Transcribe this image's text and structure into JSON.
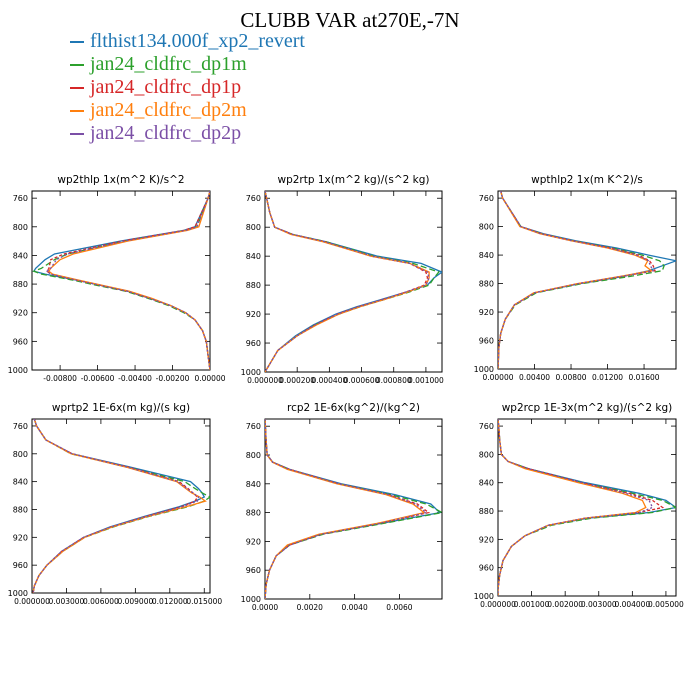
{
  "figure": {
    "title": "CLUBB VAR at270E,-7N"
  },
  "colors": {
    "series": [
      "#1f77b4",
      "#2ca02c",
      "#d62728",
      "#ff7f0e",
      "#7b4fa6"
    ]
  },
  "legend": [
    {
      "name": "flthist134.000f_xp2_revert",
      "color": "#1f77b4"
    },
    {
      "name": "jan24_cldfrc_dp1m",
      "color": "#2ca02c"
    },
    {
      "name": "jan24_cldfrc_dp1p",
      "color": "#d62728"
    },
    {
      "name": "jan24_cldfrc_dp2m",
      "color": "#ff7f0e"
    },
    {
      "name": "jan24_cldfrc_dp2p",
      "color": "#7b4fa6"
    }
  ],
  "chart_data": [
    {
      "type": "line",
      "title": "wp2thlp   1x(m^2 K)/s^2",
      "xlim": [
        -0.0095,
        0.0
      ],
      "ylim": [
        1000,
        750
      ],
      "xticks": [
        -0.008,
        -0.006,
        -0.004,
        -0.002,
        0.0
      ],
      "xtick_labels": [
        "-0.00800",
        "-0.00600",
        "-0.00400",
        "-0.00200",
        "0.00000"
      ],
      "yticks": [
        760,
        800,
        840,
        880,
        920,
        960,
        1000
      ],
      "y": [
        750,
        760,
        800,
        805,
        820,
        838,
        846,
        858,
        862,
        866,
        874,
        882,
        890,
        900,
        910,
        920,
        930,
        945,
        960,
        980,
        1000
      ],
      "series": [
        {
          "name": "flthist134.000f_xp2_revert",
          "x": [
            0,
            -0.0001,
            -0.0008,
            -0.0014,
            -0.0048,
            -0.0083,
            -0.0088,
            -0.0093,
            -0.0094,
            -0.0088,
            -0.0072,
            -0.0058,
            -0.0044,
            -0.0032,
            -0.0021,
            -0.0013,
            -0.0008,
            -0.0004,
            -0.0002,
            -0.0001,
            0
          ]
        },
        {
          "name": "jan24_cldfrc_dp1m",
          "x": [
            0,
            -0.0001,
            -0.0007,
            -0.0013,
            -0.0046,
            -0.0076,
            -0.0083,
            -0.009,
            -0.0094,
            -0.009,
            -0.0074,
            -0.006,
            -0.0045,
            -0.0033,
            -0.0022,
            -0.0014,
            -0.0008,
            -0.0004,
            -0.0002,
            -0.0001,
            0
          ]
        },
        {
          "name": "jan24_cldfrc_dp1p",
          "x": [
            0,
            -0.0001,
            -0.0008,
            -0.0014,
            -0.0047,
            -0.0078,
            -0.0085,
            -0.0086,
            -0.0087,
            -0.0085,
            -0.0072,
            -0.0058,
            -0.0044,
            -0.0032,
            -0.0021,
            -0.0013,
            -0.0008,
            -0.0004,
            -0.0002,
            -0.0001,
            0
          ]
        },
        {
          "name": "jan24_cldfrc_dp2m",
          "x": [
            0,
            -0.0001,
            -0.0006,
            -0.0012,
            -0.0044,
            -0.0073,
            -0.008,
            -0.0085,
            -0.0086,
            -0.0084,
            -0.0071,
            -0.0057,
            -0.0043,
            -0.0031,
            -0.0021,
            -0.0013,
            -0.0008,
            -0.0004,
            -0.0002,
            -0.0001,
            0
          ]
        },
        {
          "name": "jan24_cldfrc_dp2p",
          "x": [
            0,
            -0.0001,
            -0.0007,
            -0.0013,
            -0.0046,
            -0.0076,
            -0.0082,
            -0.0085,
            -0.0087,
            -0.0085,
            -0.0072,
            -0.0058,
            -0.0044,
            -0.0032,
            -0.0021,
            -0.0013,
            -0.0008,
            -0.0004,
            -0.0002,
            -0.0001,
            0
          ]
        }
      ]
    },
    {
      "type": "line",
      "title": "wp2rtp   1x(m^2 kg)/(s^2 kg)",
      "xlim": [
        0.0,
        0.0011
      ],
      "ylim": [
        1000,
        750
      ],
      "xticks": [
        0.0,
        0.0002,
        0.0004,
        0.0006,
        0.0008,
        0.001
      ],
      "xtick_labels": [
        "0.000000",
        "0.000200",
        "0.000400",
        "0.000600",
        "0.000800",
        "0.001000"
      ],
      "yticks": [
        760,
        800,
        840,
        880,
        920,
        960,
        1000
      ],
      "y": [
        750,
        760,
        780,
        800,
        810,
        820,
        840,
        850,
        862,
        870,
        880,
        890,
        900,
        910,
        920,
        935,
        950,
        970,
        1000
      ],
      "series": [
        {
          "name": "flthist134.000f_xp2_revert",
          "x": [
            0,
            1e-05,
            3e-05,
            6e-05,
            0.00017,
            0.00038,
            0.0007,
            0.00097,
            0.0011,
            0.00105,
            0.00101,
            0.00087,
            0.00072,
            0.00057,
            0.00044,
            0.0003,
            0.00019,
            8e-05,
            0
          ]
        },
        {
          "name": "jan24_cldfrc_dp1m",
          "x": [
            0,
            1e-05,
            3e-05,
            6e-05,
            0.00017,
            0.00038,
            0.00068,
            0.00092,
            0.00108,
            0.00105,
            0.00102,
            0.00089,
            0.00074,
            0.00059,
            0.00046,
            0.00031,
            0.0002,
            8e-05,
            0
          ]
        },
        {
          "name": "jan24_cldfrc_dp1p",
          "x": [
            0,
            1e-05,
            3e-05,
            6e-05,
            0.00017,
            0.00037,
            0.00066,
            0.0009,
            0.001,
            0.00101,
            0.00099,
            0.00087,
            0.00073,
            0.00058,
            0.00045,
            0.00031,
            0.0002,
            8e-05,
            0
          ]
        },
        {
          "name": "jan24_cldfrc_dp2m",
          "x": [
            0,
            1e-05,
            3e-05,
            6e-05,
            0.00016,
            0.00036,
            0.00066,
            0.0009,
            0.00102,
            0.00102,
            0.001,
            0.00088,
            0.00074,
            0.00059,
            0.00046,
            0.00032,
            0.0002,
            8e-05,
            0
          ]
        },
        {
          "name": "jan24_cldfrc_dp2p",
          "x": [
            0,
            1e-05,
            3e-05,
            6e-05,
            0.00017,
            0.00037,
            0.00067,
            0.0009,
            0.00101,
            0.00102,
            0.001,
            0.00087,
            0.00073,
            0.00058,
            0.00045,
            0.00031,
            0.0002,
            8e-05,
            0
          ]
        }
      ]
    },
    {
      "type": "line",
      "title": "wpthlp2   1x(m K^2)/s",
      "xlim": [
        0.0,
        0.0195
      ],
      "ylim": [
        1000,
        750
      ],
      "xticks": [
        0.0,
        0.004,
        0.008,
        0.012,
        0.016
      ],
      "xtick_labels": [
        "0.00000",
        "0.00400",
        "0.00800",
        "0.01200",
        "0.01600"
      ],
      "yticks": [
        760,
        800,
        840,
        880,
        920,
        960,
        1000
      ],
      "y": [
        750,
        760,
        800,
        810,
        820,
        830,
        840,
        848,
        855,
        862,
        870,
        880,
        893,
        910,
        930,
        950,
        970,
        1000
      ],
      "series": [
        {
          "name": "flthist134.000f_xp2_revert",
          "x": [
            0.0003,
            0.0005,
            0.0025,
            0.005,
            0.0085,
            0.013,
            0.0165,
            0.0195,
            0.018,
            0.0165,
            0.0138,
            0.009,
            0.004,
            0.0018,
            0.0008,
            0.0003,
            0.0001,
            0
          ]
        },
        {
          "name": "jan24_cldfrc_dp1m",
          "x": [
            0.0003,
            0.0005,
            0.0025,
            0.0048,
            0.0082,
            0.0125,
            0.0158,
            0.0177,
            0.0182,
            0.018,
            0.0145,
            0.0092,
            0.0042,
            0.0019,
            0.0008,
            0.0003,
            0.0001,
            0
          ]
        },
        {
          "name": "jan24_cldfrc_dp1p",
          "x": [
            0.0003,
            0.0005,
            0.0025,
            0.0048,
            0.0082,
            0.0124,
            0.0154,
            0.0166,
            0.017,
            0.0172,
            0.0136,
            0.0088,
            0.004,
            0.0018,
            0.0008,
            0.0003,
            0.0001,
            0
          ]
        },
        {
          "name": "jan24_cldfrc_dp2m",
          "x": [
            0.0003,
            0.0005,
            0.0024,
            0.0046,
            0.008,
            0.012,
            0.015,
            0.0164,
            0.0161,
            0.0168,
            0.0134,
            0.0087,
            0.0039,
            0.0018,
            0.0008,
            0.0003,
            0.0001,
            0
          ]
        },
        {
          "name": "jan24_cldfrc_dp2p",
          "x": [
            0.0003,
            0.0005,
            0.0025,
            0.0047,
            0.0081,
            0.0122,
            0.0152,
            0.0165,
            0.0167,
            0.017,
            0.0135,
            0.0088,
            0.004,
            0.0018,
            0.0008,
            0.0003,
            0.0001,
            0
          ]
        }
      ]
    },
    {
      "type": "line",
      "title": "wprtp2   1E-6x(m kg)/(s kg)",
      "xlim": [
        0.0,
        0.0155
      ],
      "ylim": [
        1000,
        750
      ],
      "xticks": [
        0.0,
        0.003,
        0.006,
        0.009,
        0.012,
        0.015
      ],
      "xtick_labels": [
        "0.000000",
        "0.003000",
        "0.006000",
        "0.009000",
        "0.012000",
        "0.015000"
      ],
      "yticks": [
        760,
        800,
        840,
        880,
        920,
        960,
        1000
      ],
      "y": [
        750,
        760,
        780,
        800,
        820,
        840,
        850,
        856,
        862,
        868,
        876,
        890,
        905,
        920,
        940,
        960,
        975,
        990,
        1000
      ],
      "series": [
        {
          "name": "flthist134.000f_xp2_revert",
          "x": [
            0.0002,
            0.0004,
            0.0012,
            0.0035,
            0.0088,
            0.0138,
            0.0145,
            0.0148,
            0.015,
            0.0142,
            0.0128,
            0.0098,
            0.0068,
            0.0045,
            0.0026,
            0.0013,
            0.0006,
            0.0002,
            0.0001
          ]
        },
        {
          "name": "jan24_cldfrc_dp1m",
          "x": [
            0.0002,
            0.0004,
            0.0012,
            0.0034,
            0.0085,
            0.0133,
            0.0142,
            0.0148,
            0.0155,
            0.015,
            0.0136,
            0.0102,
            0.0071,
            0.0046,
            0.0027,
            0.0013,
            0.0006,
            0.0002,
            0.0001
          ]
        },
        {
          "name": "jan24_cldfrc_dp1p",
          "x": [
            0.0002,
            0.0004,
            0.0012,
            0.0035,
            0.0086,
            0.0128,
            0.0136,
            0.014,
            0.0144,
            0.0142,
            0.013,
            0.0099,
            0.0069,
            0.0045,
            0.0026,
            0.0013,
            0.0006,
            0.0002,
            0.0001
          ]
        },
        {
          "name": "jan24_cldfrc_dp2m",
          "x": [
            0.0002,
            0.0004,
            0.0012,
            0.0034,
            0.0084,
            0.0126,
            0.0134,
            0.0139,
            0.0146,
            0.0151,
            0.0134,
            0.0101,
            0.007,
            0.0046,
            0.0027,
            0.0013,
            0.0006,
            0.0002,
            0.0001
          ]
        },
        {
          "name": "jan24_cldfrc_dp2p",
          "x": [
            0.0002,
            0.0004,
            0.0012,
            0.0035,
            0.0085,
            0.0127,
            0.0135,
            0.014,
            0.0145,
            0.0144,
            0.0131,
            0.01,
            0.0069,
            0.0045,
            0.0026,
            0.0013,
            0.0006,
            0.0002,
            0.0001
          ]
        }
      ]
    },
    {
      "type": "line",
      "title": "rcp2   1E-6x(kg^2)/(kg^2)",
      "xlim": [
        0.0,
        0.0079
      ],
      "ylim": [
        1000,
        750
      ],
      "xticks": [
        0.0,
        0.002,
        0.004,
        0.006
      ],
      "xtick_labels": [
        "0.0000",
        "0.0020",
        "0.0040",
        "0.0060"
      ],
      "yticks": [
        760,
        800,
        840,
        880,
        920,
        960,
        1000
      ],
      "y": [
        750,
        760,
        780,
        800,
        810,
        820,
        840,
        855,
        868,
        880,
        895,
        910,
        925,
        940,
        960,
        980,
        1000
      ],
      "series": [
        {
          "name": "flthist134.000f_xp2_revert",
          "x": [
            0,
            2e-05,
            5e-05,
            0.0001,
            0.00035,
            0.0011,
            0.0034,
            0.0058,
            0.0074,
            0.0078,
            0.0052,
            0.0025,
            0.0011,
            0.0005,
            0.0002,
            5e-05,
            0
          ]
        },
        {
          "name": "jan24_cldfrc_dp1m",
          "x": [
            0,
            2e-05,
            5e-05,
            0.0001,
            0.00035,
            0.0011,
            0.0033,
            0.0056,
            0.0072,
            0.0079,
            0.0053,
            0.0026,
            0.0011,
            0.0005,
            0.0002,
            5e-05,
            0
          ]
        },
        {
          "name": "jan24_cldfrc_dp1p",
          "x": [
            0,
            2e-05,
            5e-05,
            0.0001,
            0.00035,
            0.0011,
            0.0033,
            0.0055,
            0.0068,
            0.0073,
            0.0051,
            0.0025,
            0.0011,
            0.0005,
            0.0002,
            5e-05,
            0
          ]
        },
        {
          "name": "jan24_cldfrc_dp2m",
          "x": [
            0,
            2e-05,
            5e-05,
            0.0001,
            0.00033,
            0.001,
            0.0032,
            0.0054,
            0.0066,
            0.0071,
            0.005,
            0.0024,
            0.001,
            0.0005,
            0.0002,
            5e-05,
            0
          ]
        },
        {
          "name": "jan24_cldfrc_dp2p",
          "x": [
            0,
            2e-05,
            5e-05,
            0.0001,
            0.00034,
            0.0011,
            0.0033,
            0.0055,
            0.0067,
            0.0072,
            0.0051,
            0.0025,
            0.0011,
            0.0005,
            0.0002,
            5e-05,
            0
          ]
        }
      ]
    },
    {
      "type": "line",
      "title": "wp2rcp   1E-3x(m^2 kg)/(s^2 kg)",
      "xlim": [
        0.0,
        0.0053
      ],
      "ylim": [
        1000,
        750
      ],
      "xticks": [
        0.0,
        0.001,
        0.002,
        0.003,
        0.004,
        0.005
      ],
      "xtick_labels": [
        "0.000000",
        "0.001000",
        "0.002000",
        "0.003000",
        "0.004000",
        "0.005000"
      ],
      "yticks": [
        760,
        800,
        840,
        880,
        920,
        960,
        1000
      ],
      "y": [
        750,
        760,
        780,
        800,
        810,
        820,
        840,
        855,
        865,
        875,
        882,
        890,
        900,
        915,
        930,
        950,
        970,
        990,
        1000
      ],
      "series": [
        {
          "name": "flthist134.000f_xp2_revert",
          "x": [
            0,
            2e-05,
            5e-05,
            0.0001,
            0.0003,
            0.0009,
            0.0026,
            0.0042,
            0.005,
            0.0053,
            0.0045,
            0.0027,
            0.0015,
            0.0008,
            0.0004,
            0.00015,
            5e-05,
            0,
            0
          ]
        },
        {
          "name": "jan24_cldfrc_dp1m",
          "x": [
            0,
            2e-05,
            5e-05,
            0.0001,
            0.0003,
            0.0009,
            0.0025,
            0.004,
            0.0049,
            0.0053,
            0.0046,
            0.0028,
            0.0016,
            0.0008,
            0.0004,
            0.00015,
            5e-05,
            0,
            0
          ]
        },
        {
          "name": "jan24_cldfrc_dp1p",
          "x": [
            0,
            2e-05,
            5e-05,
            0.0001,
            0.0003,
            0.0009,
            0.0025,
            0.0039,
            0.0046,
            0.0049,
            0.0042,
            0.0026,
            0.0015,
            0.0008,
            0.0004,
            0.00015,
            5e-05,
            0,
            0
          ]
        },
        {
          "name": "jan24_cldfrc_dp2m",
          "x": [
            0,
            2e-05,
            5e-05,
            0.0001,
            0.0003,
            0.0008,
            0.0024,
            0.0037,
            0.0043,
            0.0044,
            0.0041,
            0.0026,
            0.0015,
            0.0008,
            0.0004,
            0.00015,
            5e-05,
            0,
            0
          ]
        },
        {
          "name": "jan24_cldfrc_dp2p",
          "x": [
            0,
            2e-05,
            5e-05,
            0.0001,
            0.0003,
            0.0009,
            0.0025,
            0.0038,
            0.0045,
            0.0046,
            0.0042,
            0.0026,
            0.0015,
            0.0008,
            0.0004,
            0.00015,
            5e-05,
            0,
            0
          ]
        }
      ]
    }
  ]
}
